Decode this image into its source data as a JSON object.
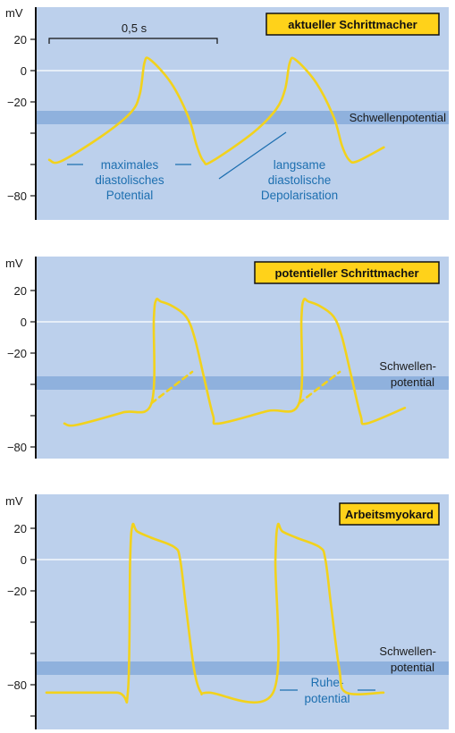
{
  "colors": {
    "panel_bg": "#bcd0ec",
    "threshold_band": "#8fb1dd",
    "zero_line": "#ffffff",
    "trace": "#f2d21c",
    "badge_bg": "#ffd21a",
    "annotation": "#1d6fb0",
    "axis": "#111111"
  },
  "chart_data": [
    {
      "type": "line",
      "title": "aktueller Schrittmacher",
      "ylabel": "mV",
      "y_tick_labels": [
        "20",
        "0",
        "−20",
        "−80"
      ],
      "scale_bar": "0,5 s",
      "threshold": {
        "value": -30,
        "label": [
          "Schwellenpotential"
        ]
      },
      "annotations": [
        "maximales",
        "diastolisches",
        "Potential",
        "langsame",
        "diastolische",
        "Depolarisation"
      ],
      "series": [
        {
          "values": [
            [
              0.0,
              -57
            ],
            [
              0.1,
              -58
            ],
            [
              0.45,
              -42
            ],
            [
              0.7,
              -27
            ],
            [
              0.78,
              -15
            ],
            [
              0.82,
              5
            ],
            [
              0.87,
              7
            ],
            [
              1.05,
              -8
            ],
            [
              1.2,
              -30
            ],
            [
              1.27,
              -48
            ],
            [
              1.33,
              -58
            ],
            [
              1.4,
              -58
            ],
            [
              1.75,
              -40
            ],
            [
              1.95,
              -25
            ],
            [
              2.03,
              -12
            ],
            [
              2.07,
              5
            ],
            [
              2.12,
              7
            ],
            [
              2.3,
              -8
            ],
            [
              2.45,
              -30
            ],
            [
              2.52,
              -48
            ],
            [
              2.58,
              -57
            ],
            [
              2.65,
              -58
            ],
            [
              2.88,
              -49
            ]
          ]
        }
      ]
    },
    {
      "type": "line",
      "title": "potentieller Schrittmacher",
      "ylabel": "mV",
      "y_tick_labels": [
        "20",
        "0",
        "−20",
        "−80"
      ],
      "threshold": {
        "value": -38,
        "label": [
          "Schwellen-",
          "potential"
        ]
      },
      "series": [
        {
          "values": [
            [
              0.0,
              -65
            ],
            [
              0.1,
              -66
            ],
            [
              0.5,
              -58
            ],
            [
              0.75,
              -52
            ],
            [
              0.77,
              2
            ],
            [
              0.79,
              14
            ],
            [
              0.83,
              13
            ],
            [
              0.93,
              10
            ],
            [
              1.05,
              3
            ],
            [
              1.12,
              -10
            ],
            [
              1.2,
              -35
            ],
            [
              1.28,
              -60
            ],
            [
              1.33,
              -65
            ],
            [
              1.75,
              -57
            ],
            [
              2.02,
              -52
            ],
            [
              2.04,
              2
            ],
            [
              2.06,
              14
            ],
            [
              2.1,
              13
            ],
            [
              2.2,
              10
            ],
            [
              2.32,
              3
            ],
            [
              2.39,
              -10
            ],
            [
              2.47,
              -35
            ],
            [
              2.55,
              -60
            ],
            [
              2.6,
              -65
            ],
            [
              2.93,
              -55
            ]
          ]
        },
        {
          "dashed": true,
          "values": [
            [
              0.75,
              -52
            ],
            [
              1.1,
              -32
            ]
          ]
        },
        {
          "dashed": true,
          "values": [
            [
              2.02,
              -52
            ],
            [
              2.37,
              -32
            ]
          ]
        }
      ]
    },
    {
      "type": "line",
      "title": "Arbeitsmyokard",
      "ylabel": "mV",
      "y_tick_labels": [
        "20",
        "0",
        "−20",
        "−80"
      ],
      "threshold": {
        "value": -70,
        "label": [
          "Schwellen-",
          "potential"
        ]
      },
      "annotations": [
        "Ruhe-",
        "potential"
      ],
      "series": [
        {
          "values": [
            [
              0.0,
              -85
            ],
            [
              0.6,
              -85
            ],
            [
              0.7,
              -85
            ],
            [
              0.72,
              0
            ],
            [
              0.74,
              22
            ],
            [
              0.78,
              18
            ],
            [
              0.9,
              14
            ],
            [
              1.1,
              8
            ],
            [
              1.15,
              0
            ],
            [
              1.2,
              -30
            ],
            [
              1.27,
              -70
            ],
            [
              1.33,
              -85
            ],
            [
              1.4,
              -85
            ],
            [
              1.95,
              -85
            ],
            [
              1.97,
              0
            ],
            [
              1.99,
              22
            ],
            [
              2.03,
              18
            ],
            [
              2.15,
              14
            ],
            [
              2.35,
              8
            ],
            [
              2.4,
              0
            ],
            [
              2.45,
              -30
            ],
            [
              2.52,
              -70
            ],
            [
              2.58,
              -85
            ],
            [
              2.9,
              -85
            ]
          ]
        }
      ]
    }
  ]
}
